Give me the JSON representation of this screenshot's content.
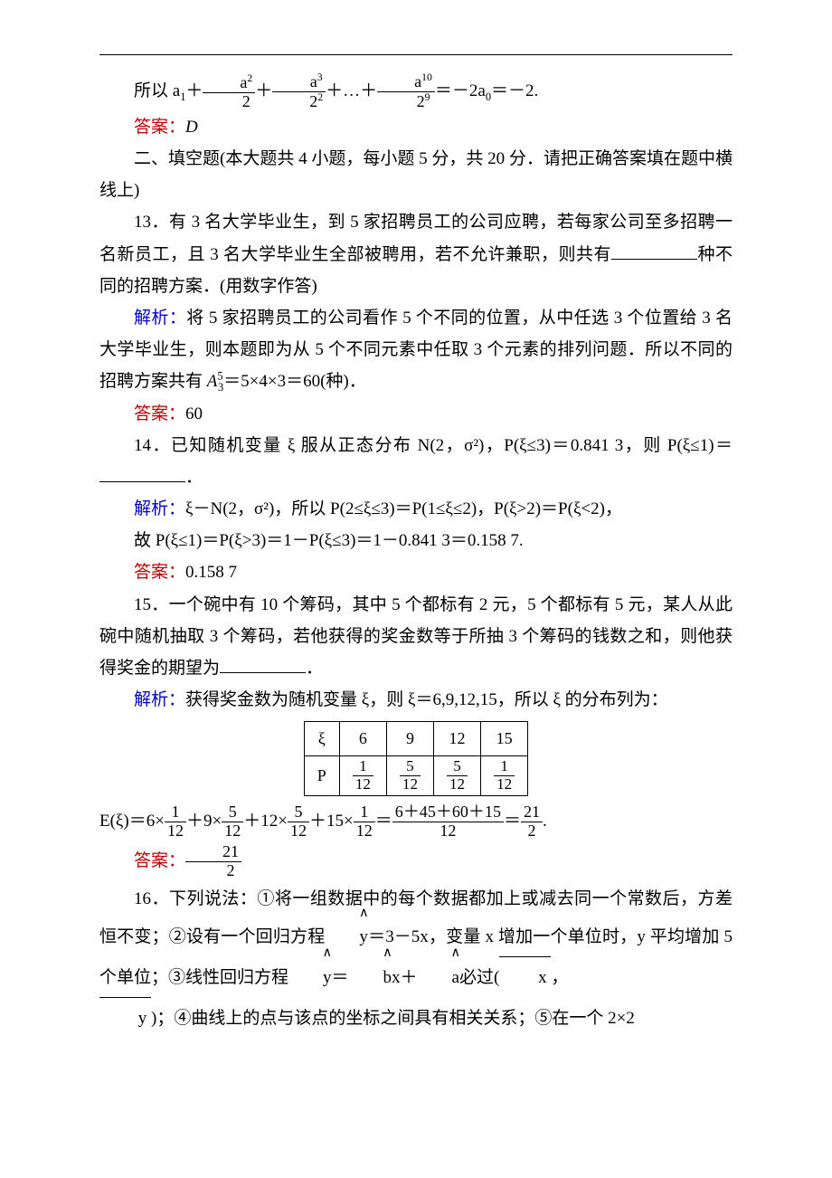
{
  "colors": {
    "red": "#c00000",
    "blue": "#0000cc",
    "text": "#000000",
    "bg": "#ffffff"
  },
  "typography": {
    "base_size_pt": 14,
    "line_height": 1.85,
    "font_family": "SimSun"
  },
  "line_top": "所以 a₁＋a²/2＋a³/2²＋…＋a¹⁰/2⁹＝－2a₀＝－2.",
  "ans_top_label": "答案：",
  "ans_top_value": "D",
  "sec2": "二、填空题(本大题共 4 小题，每小题 5 分，共 20 分．请把正确答案填在题中横线上)",
  "q13_a": "13．有 3 名大学毕业生，到 5 家招聘员工的公司应聘，若每家公司至多招聘一名新员工，且 3 名大学毕业生全部被聘用，若不允许兼职，则共有",
  "q13_b": "种不同的招聘方案．(用数字作答)",
  "jiexi_label": "解析：",
  "q13_sol": "将 5 家招聘员工的公司看作 5 个不同的位置，从中任选 3 个位置给 3 名大学毕业生，则本题即为从 5 个不同元素中任取 3 个元素的排列问题．所以不同的招聘方案共有 A⁵₃＝5×4×3＝60(种)．",
  "ans_label": "答案：",
  "q13_ans": "60",
  "q14_a": "14．已知随机变量 ξ 服从正态分布 N(2，σ²)，P(ξ≤3)＝0.841 3，则 P(ξ≤1)＝",
  "q14_b": "．",
  "q14_sol1": "ξ－N(2，σ²)，所以 P(2≤ξ≤3)＝P(1≤ξ≤2)，P(ξ>2)＝P(ξ<2)，",
  "q14_sol2": "故 P(ξ≤1)＝P(ξ>3)＝1－P(ξ≤3)＝1－0.841 3＝0.158 7.",
  "q14_ans": "0.158 7",
  "q15_a": "15．一个碗中有 10 个筹码，其中 5 个都标有 2 元，5 个都标有 5 元，某人从此碗中随机抽取 3 个筹码，若他获得的奖金数等于所抽 3 个筹码的钱数之和，则他获得奖金的期望为",
  "q15_b": "．",
  "q15_sol_intro": "获得奖金数为随机变量 ξ，则 ξ＝6,9,12,15，所以 ξ 的分布列为：",
  "q15_table": {
    "header": [
      "ξ",
      "6",
      "9",
      "12",
      "15"
    ],
    "row_label": "P",
    "probs": [
      {
        "num": "1",
        "den": "12"
      },
      {
        "num": "5",
        "den": "12"
      },
      {
        "num": "5",
        "den": "12"
      },
      {
        "num": "1",
        "den": "12"
      }
    ]
  },
  "q15_eq_lhs": "E(ξ)＝6×",
  "q15_eq_text": "E(ξ)＝6×1/12＋9×5/12＋12×5/12＋15×1/12＝(6＋45＋60＋15)/12＝21/2.",
  "q15_ans_frac": {
    "num": "21",
    "den": "2"
  },
  "q16_a": "16．下列说法：①将一组数据中的每个数据都加上或减去同一个常数后，方差恒不变；②设有一个回归方程",
  "q16_b": "＝3－5x，变量 x 增加一个单位时，y 平均增加 5 个单位；③线性回归方程",
  "q16_c": "＝",
  "q16_d": "x＋",
  "q16_e": "必过(",
  "q16_f": "，",
  "q16_g": ")；④曲线上的点与该点的坐标之间具有相关关系；⑤在一个 2×2"
}
